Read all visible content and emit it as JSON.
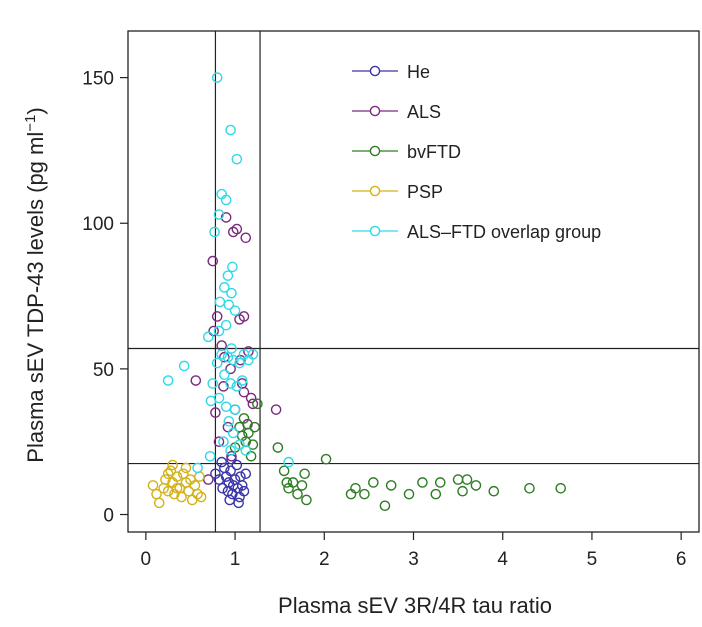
{
  "chart_data": {
    "type": "scatter",
    "title": "",
    "xlabel": "Plasma sEV 3R/4R tau ratio",
    "ylabel_main": "Plasma sEV TDP-43 levels (pg ml",
    "ylabel_sup": "−1",
    "ylabel_close": ")",
    "xlim": [
      -0.2,
      6.2
    ],
    "ylim": [
      -6,
      166
    ],
    "xticks": [
      0,
      1,
      2,
      3,
      4,
      5,
      6
    ],
    "yticks": [
      0,
      50,
      100,
      150
    ],
    "xtick_labels": [
      "0",
      "1",
      "2",
      "3",
      "4",
      "5",
      "6"
    ],
    "ytick_labels": [
      "0",
      "50",
      "100",
      "150"
    ],
    "grid": false,
    "legend_position": "top-right",
    "reference_lines": {
      "vertical": [
        0.78,
        1.28
      ],
      "horizontal": [
        17.5,
        57
      ]
    },
    "series": [
      {
        "name": "He",
        "color": "#3a35a8",
        "points": [
          [
            0.78,
            14
          ],
          [
            0.82,
            12
          ],
          [
            0.86,
            9
          ],
          [
            0.88,
            16
          ],
          [
            0.9,
            13
          ],
          [
            0.92,
            8
          ],
          [
            0.93,
            11
          ],
          [
            0.95,
            15
          ],
          [
            0.97,
            7
          ],
          [
            0.98,
            10
          ],
          [
            1.0,
            12
          ],
          [
            1.02,
            17
          ],
          [
            1.03,
            9
          ],
          [
            1.05,
            6
          ],
          [
            1.06,
            13
          ],
          [
            1.08,
            10
          ],
          [
            1.1,
            8
          ],
          [
            1.12,
            14
          ],
          [
            0.85,
            18
          ],
          [
            0.96,
            19
          ],
          [
            1.04,
            4
          ],
          [
            0.94,
            5
          ]
        ]
      },
      {
        "name": "ALS",
        "color": "#7b2a7e",
        "points": [
          [
            0.75,
            87
          ],
          [
            0.8,
            68
          ],
          [
            0.85,
            58
          ],
          [
            0.88,
            54
          ],
          [
            0.9,
            102
          ],
          [
            0.95,
            50
          ],
          [
            0.98,
            97
          ],
          [
            1.02,
            98
          ],
          [
            1.05,
            67
          ],
          [
            1.08,
            45
          ],
          [
            1.1,
            68
          ],
          [
            1.12,
            95
          ],
          [
            1.15,
            56
          ],
          [
            1.18,
            40
          ],
          [
            0.78,
            35
          ],
          [
            0.82,
            25
          ],
          [
            0.92,
            30
          ],
          [
            0.96,
            20
          ],
          [
            1.0,
            36
          ],
          [
            1.06,
            53
          ],
          [
            1.1,
            42
          ],
          [
            0.7,
            12
          ],
          [
            0.56,
            46
          ],
          [
            0.76,
            63
          ],
          [
            1.46,
            36
          ],
          [
            1.2,
            38
          ],
          [
            0.87,
            44
          ],
          [
            1.14,
            31
          ]
        ]
      },
      {
        "name": "bvFTD",
        "color": "#2e7d24",
        "points": [
          [
            1.05,
            30
          ],
          [
            1.1,
            33
          ],
          [
            1.12,
            25
          ],
          [
            1.15,
            28
          ],
          [
            1.18,
            20
          ],
          [
            1.2,
            24
          ],
          [
            1.22,
            30
          ],
          [
            1.25,
            38
          ],
          [
            1.0,
            23
          ],
          [
            1.08,
            27
          ],
          [
            1.48,
            23
          ],
          [
            1.55,
            15
          ],
          [
            1.58,
            11
          ],
          [
            1.6,
            9
          ],
          [
            1.65,
            11
          ],
          [
            1.7,
            7
          ],
          [
            1.75,
            10
          ],
          [
            1.78,
            14
          ],
          [
            1.8,
            5
          ],
          [
            2.02,
            19
          ],
          [
            2.3,
            7
          ],
          [
            2.35,
            9
          ],
          [
            2.45,
            7
          ],
          [
            2.55,
            11
          ],
          [
            2.68,
            3
          ],
          [
            2.75,
            10
          ],
          [
            2.95,
            7
          ],
          [
            3.1,
            11
          ],
          [
            3.25,
            7
          ],
          [
            3.3,
            11
          ],
          [
            3.5,
            12
          ],
          [
            3.55,
            8
          ],
          [
            3.6,
            12
          ],
          [
            3.7,
            10
          ],
          [
            3.9,
            8
          ],
          [
            4.3,
            9
          ],
          [
            4.65,
            9
          ]
        ]
      },
      {
        "name": "PSP",
        "color": "#d4b21a",
        "points": [
          [
            0.08,
            10
          ],
          [
            0.12,
            7
          ],
          [
            0.15,
            4
          ],
          [
            0.2,
            9
          ],
          [
            0.22,
            12
          ],
          [
            0.25,
            8
          ],
          [
            0.28,
            15
          ],
          [
            0.3,
            11
          ],
          [
            0.32,
            7
          ],
          [
            0.35,
            13
          ],
          [
            0.38,
            9
          ],
          [
            0.4,
            6
          ],
          [
            0.42,
            14
          ],
          [
            0.45,
            11
          ],
          [
            0.48,
            8
          ],
          [
            0.5,
            12
          ],
          [
            0.52,
            5
          ],
          [
            0.55,
            10
          ],
          [
            0.58,
            7
          ],
          [
            0.6,
            13
          ],
          [
            0.62,
            6
          ],
          [
            0.3,
            17
          ],
          [
            0.35,
            9
          ],
          [
            0.45,
            16
          ],
          [
            0.25,
            14
          ]
        ]
      },
      {
        "name": "ALS–FTD overlap group",
        "color": "#2fd9e8",
        "points": [
          [
            0.8,
            150
          ],
          [
            0.95,
            132
          ],
          [
            1.02,
            122
          ],
          [
            0.85,
            110
          ],
          [
            0.9,
            108
          ],
          [
            0.82,
            103
          ],
          [
            0.77,
            97
          ],
          [
            0.97,
            85
          ],
          [
            0.92,
            82
          ],
          [
            0.88,
            78
          ],
          [
            0.96,
            76
          ],
          [
            0.83,
            73
          ],
          [
            0.93,
            72
          ],
          [
            1.0,
            70
          ],
          [
            0.9,
            65
          ],
          [
            0.82,
            63
          ],
          [
            0.7,
            61
          ],
          [
            0.96,
            57
          ],
          [
            0.85,
            55
          ],
          [
            0.92,
            54
          ],
          [
            0.98,
            53
          ],
          [
            1.05,
            52
          ],
          [
            1.1,
            55
          ],
          [
            1.15,
            53
          ],
          [
            1.2,
            55
          ],
          [
            0.8,
            52
          ],
          [
            0.88,
            48
          ],
          [
            0.95,
            45
          ],
          [
            1.02,
            44
          ],
          [
            1.08,
            46
          ],
          [
            0.43,
            51
          ],
          [
            0.25,
            46
          ],
          [
            0.75,
            45
          ],
          [
            0.82,
            40
          ],
          [
            0.9,
            37
          ],
          [
            1.0,
            36
          ],
          [
            0.73,
            39
          ],
          [
            0.93,
            32
          ],
          [
            0.98,
            28
          ],
          [
            0.87,
            25
          ],
          [
            1.05,
            24
          ],
          [
            1.12,
            22
          ],
          [
            0.95,
            22
          ],
          [
            0.72,
            20
          ],
          [
            1.6,
            18
          ],
          [
            0.58,
            16
          ]
        ]
      }
    ]
  }
}
